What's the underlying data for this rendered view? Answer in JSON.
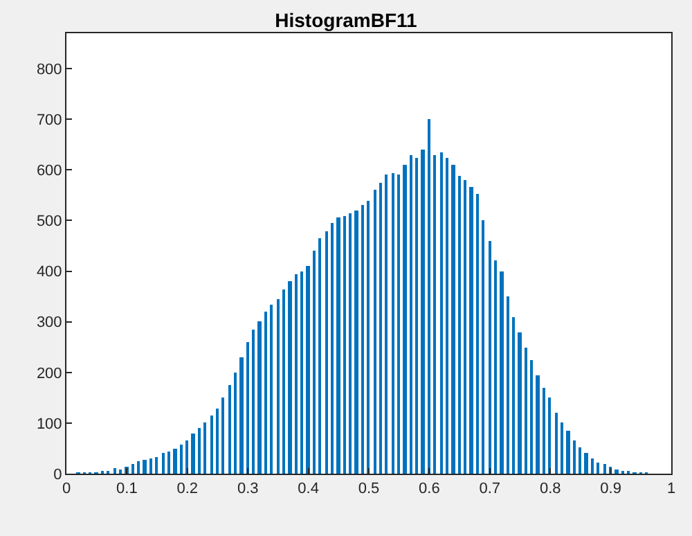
{
  "chart_data": {
    "type": "bar",
    "title": "HistogramBF11",
    "x": [
      0,
      0.01,
      0.02,
      0.03,
      0.04,
      0.05,
      0.06,
      0.07,
      0.08,
      0.09,
      0.1,
      0.11,
      0.12,
      0.13,
      0.14,
      0.15,
      0.16,
      0.17,
      0.18,
      0.19,
      0.2,
      0.21,
      0.22,
      0.23,
      0.24,
      0.25,
      0.26,
      0.27,
      0.28,
      0.29,
      0.3,
      0.31,
      0.32,
      0.33,
      0.34,
      0.35,
      0.36,
      0.37,
      0.38,
      0.39,
      0.4,
      0.41,
      0.42,
      0.43,
      0.44,
      0.45,
      0.46,
      0.47,
      0.48,
      0.49,
      0.5,
      0.51,
      0.52,
      0.53,
      0.54,
      0.55,
      0.56,
      0.57,
      0.58,
      0.59,
      0.6,
      0.61,
      0.62,
      0.63,
      0.64,
      0.65,
      0.66,
      0.67,
      0.68,
      0.69,
      0.7,
      0.71,
      0.72,
      0.73,
      0.74,
      0.75,
      0.76,
      0.77,
      0.78,
      0.79,
      0.8,
      0.81,
      0.82,
      0.83,
      0.84,
      0.85,
      0.86,
      0.87,
      0.88,
      0.89,
      0.9,
      0.91,
      0.92,
      0.93,
      0.94,
      0.95,
      0.96,
      0.97,
      0.98,
      0.99,
      1
    ],
    "values": [
      0,
      0,
      1,
      2,
      2,
      2,
      3,
      5,
      10,
      8,
      14,
      20,
      25,
      28,
      30,
      33,
      40,
      45,
      50,
      58,
      65,
      78,
      90,
      100,
      115,
      128,
      150,
      175,
      200,
      230,
      260,
      285,
      300,
      320,
      335,
      345,
      365,
      380,
      395,
      400,
      410,
      440,
      465,
      480,
      495,
      505,
      510,
      515,
      520,
      530,
      540,
      560,
      575,
      590,
      595,
      590,
      610,
      630,
      625,
      640,
      700,
      630,
      634,
      625,
      610,
      588,
      580,
      565,
      552,
      500,
      460,
      420,
      400,
      350,
      310,
      280,
      250,
      225,
      195,
      170,
      150,
      120,
      100,
      85,
      65,
      52,
      40,
      30,
      22,
      18,
      14,
      8,
      6,
      3,
      2,
      1,
      1,
      0,
      0,
      0,
      0
    ],
    "color": "#0072bd",
    "xlim": [
      0,
      1
    ],
    "xticks": [
      0,
      0.1,
      0.2,
      0.3,
      0.4,
      0.5,
      0.6,
      0.7,
      0.8,
      0.9,
      1
    ],
    "ylim": [
      0,
      870
    ],
    "yticks": [
      0,
      100,
      200,
      300,
      400,
      500,
      600,
      700,
      800
    ],
    "grid": false
  }
}
